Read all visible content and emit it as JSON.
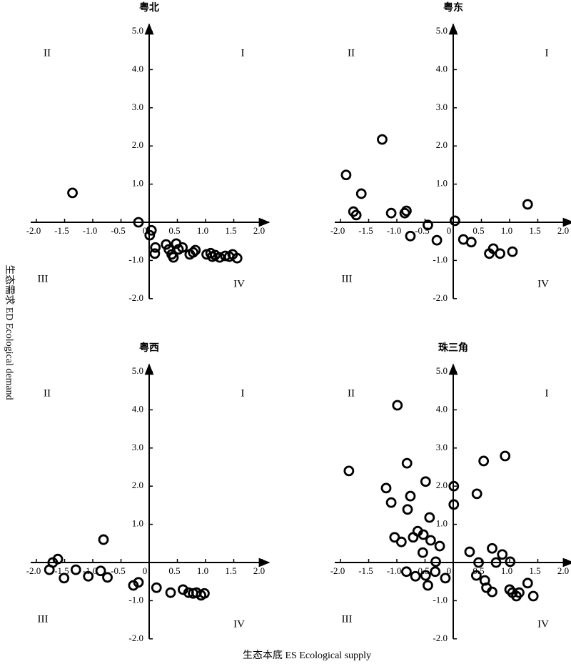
{
  "y_label": "生态需求 ED  Ecological demand",
  "x_label": "生态本底 ES  Ecological supply",
  "chart_data": [
    {
      "type": "scatter",
      "title": "粤北",
      "color": "#000000",
      "quadrant_labels": [
        "I",
        "II",
        "III",
        "IV"
      ],
      "xlim": [
        -2,
        2
      ],
      "ylim": [
        -2,
        5
      ],
      "xticks": [
        {
          "value": -2,
          "label": "-2.0"
        },
        {
          "value": -1.5,
          "label": "-1.5"
        },
        {
          "value": -1,
          "label": "-1.0"
        },
        {
          "value": -0.5,
          "label": "-0.5"
        },
        0,
        {
          "value": 0.5,
          "label": "0.5"
        },
        {
          "value": 1,
          "label": "1.0"
        },
        {
          "value": 1.5,
          "label": "1.5"
        },
        {
          "value": 2,
          "label": "2.0"
        }
      ],
      "yticks": [
        {
          "value": -2,
          "label": "-2.0"
        },
        {
          "value": -1,
          "label": "-1.0"
        },
        {
          "value": 1,
          "label": "1.0"
        },
        {
          "value": 2,
          "label": "2.0"
        },
        {
          "value": 3,
          "label": "3.0"
        },
        {
          "value": 4,
          "label": "4.0"
        },
        {
          "value": 5,
          "label": "5.0"
        }
      ],
      "x": [
        -1.36,
        -0.19,
        0.01,
        0.04,
        0.11,
        0.1,
        0.3,
        0.35,
        0.4,
        0.43,
        0.48,
        0.52,
        0.59,
        0.72,
        0.78,
        0.82,
        1.02,
        1.09,
        1.12,
        1.17,
        1.25,
        1.35,
        1.42,
        1.48,
        1.56
      ],
      "y": [
        0.77,
        0.0,
        -0.34,
        -0.21,
        -0.66,
        -0.82,
        -0.58,
        -0.71,
        -0.84,
        -0.92,
        -0.56,
        -0.71,
        -0.66,
        -0.84,
        -0.79,
        -0.73,
        -0.84,
        -0.81,
        -0.9,
        -0.86,
        -0.92,
        -0.88,
        -0.9,
        -0.84,
        -0.94
      ]
    },
    {
      "type": "scatter",
      "title": "粤东",
      "color": "#000000",
      "quadrant_labels": [
        "I",
        "II",
        "III",
        "IV"
      ],
      "xlim": [
        -2,
        2
      ],
      "ylim": [
        -2,
        5
      ],
      "xticks": [
        {
          "value": -2,
          "label": "-2.0"
        },
        {
          "value": -1.5,
          "label": "-1.5"
        },
        {
          "value": -1,
          "label": "-1.0"
        },
        {
          "value": -0.5,
          "label": "-0.5"
        },
        0,
        {
          "value": 0.5,
          "label": "0.5"
        },
        {
          "value": 1,
          "label": "1.0"
        },
        {
          "value": 1.5,
          "label": "1.5"
        },
        {
          "value": 2,
          "label": "2.0"
        }
      ],
      "yticks": [
        {
          "value": -2,
          "label": "-2.0"
        },
        {
          "value": -1,
          "label": "-1.0"
        },
        {
          "value": 1,
          "label": "1.0"
        },
        {
          "value": 2,
          "label": "2.0"
        },
        {
          "value": 3,
          "label": "3.0"
        },
        {
          "value": 4,
          "label": "4.0"
        },
        {
          "value": 5,
          "label": "5.0"
        }
      ],
      "x": [
        -1.9,
        -1.26,
        -1.63,
        -1.77,
        -1.72,
        -1.1,
        -0.86,
        -0.83,
        -0.76,
        -0.45,
        -0.29,
        0.03,
        0.18,
        0.32,
        0.64,
        0.71,
        0.83,
        1.05,
        1.32
      ],
      "y": [
        1.24,
        2.17,
        0.75,
        0.28,
        0.19,
        0.24,
        0.24,
        0.3,
        -0.36,
        -0.07,
        -0.47,
        0.04,
        -0.45,
        -0.52,
        -0.82,
        -0.69,
        -0.82,
        -0.77,
        0.47
      ]
    },
    {
      "type": "scatter",
      "title": "粤西",
      "color": "#000000",
      "quadrant_labels": [
        "I",
        "II",
        "III",
        "IV"
      ],
      "xlim": [
        -2,
        2
      ],
      "ylim": [
        -2,
        5
      ],
      "xticks": [
        {
          "value": -2,
          "label": "-2.0"
        },
        {
          "value": -1.5,
          "label": "-1.5"
        },
        {
          "value": -1,
          "label": "-1.0"
        },
        {
          "value": -0.5,
          "label": "-0.5"
        },
        0,
        {
          "value": 0.5,
          "label": "0.5"
        },
        {
          "value": 1,
          "label": "1.0"
        },
        {
          "value": 1.5,
          "label": "1.5"
        },
        {
          "value": 2,
          "label": "2.0"
        }
      ],
      "yticks": [
        {
          "value": -2,
          "label": "-2.0"
        },
        {
          "value": -1,
          "label": "-1.0"
        },
        {
          "value": 1,
          "label": "1.0"
        },
        {
          "value": 2,
          "label": "2.0"
        },
        {
          "value": 3,
          "label": "3.0"
        },
        {
          "value": 4,
          "label": "4.0"
        },
        {
          "value": 5,
          "label": "5.0"
        }
      ],
      "x": [
        -1.77,
        -1.71,
        -1.62,
        -1.51,
        -1.3,
        -1.08,
        -0.86,
        -0.81,
        -0.74,
        -0.28,
        -0.19,
        0.13,
        0.38,
        0.6,
        0.7,
        0.78,
        0.84,
        0.92,
        0.98
      ],
      "y": [
        -0.19,
        0.0,
        0.09,
        -0.41,
        -0.19,
        -0.36,
        -0.22,
        0.6,
        -0.39,
        -0.6,
        -0.52,
        -0.66,
        -0.79,
        -0.71,
        -0.79,
        -0.81,
        -0.79,
        -0.86,
        -0.81
      ]
    },
    {
      "type": "scatter",
      "title": "珠三角",
      "color": "#000000",
      "quadrant_labels": [
        "I",
        "II",
        "III",
        "IV"
      ],
      "xlim": [
        -2,
        2
      ],
      "ylim": [
        -2,
        5
      ],
      "xticks": [
        {
          "value": -2,
          "label": "-2.0"
        },
        {
          "value": -1.5,
          "label": "-1.5"
        },
        {
          "value": -1,
          "label": "-1.0"
        },
        {
          "value": -0.5,
          "label": "-0.5"
        },
        0,
        {
          "value": 0.5,
          "label": "0.5"
        },
        {
          "value": 1,
          "label": "1.0"
        },
        {
          "value": 1.5,
          "label": "1.5"
        },
        {
          "value": 2,
          "label": "2.0"
        }
      ],
      "yticks": [
        {
          "value": -2,
          "label": "-2.0"
        },
        {
          "value": -1,
          "label": "-1.0"
        },
        {
          "value": 1,
          "label": "1.0"
        },
        {
          "value": 2,
          "label": "2.0"
        },
        {
          "value": 3,
          "label": "3.0"
        },
        {
          "value": 4,
          "label": "4.0"
        },
        {
          "value": 5,
          "label": "5.0"
        }
      ],
      "x": [
        -1.85,
        -0.99,
        -0.82,
        -1.19,
        -0.76,
        -1.1,
        -0.81,
        -0.49,
        -0.42,
        -1.04,
        -0.92,
        -0.71,
        -0.63,
        -0.53,
        -0.4,
        -0.24,
        -0.54,
        -0.31,
        -0.83,
        -0.67,
        -0.49,
        -0.45,
        -0.32,
        -0.14,
        0.01,
        0.01,
        0.42,
        0.54,
        0.92,
        0.29,
        0.69,
        0.45,
        0.41,
        0.56,
        0.59,
        0.69,
        0.76,
        0.87,
        1.01,
        1.0,
        1.05,
        1.12,
        1.17,
        1.32,
        1.42
      ],
      "y": [
        2.4,
        4.12,
        2.6,
        1.95,
        1.74,
        1.57,
        1.39,
        2.12,
        1.18,
        0.66,
        0.54,
        0.66,
        0.82,
        0.73,
        0.58,
        0.43,
        0.26,
        0.02,
        -0.24,
        -0.36,
        -0.34,
        -0.6,
        -0.24,
        -0.41,
        2.0,
        1.52,
        1.8,
        2.66,
        2.79,
        0.28,
        0.37,
        0.0,
        -0.34,
        -0.47,
        -0.66,
        -0.77,
        0.0,
        0.21,
        0.02,
        -0.71,
        -0.79,
        -0.88,
        -0.79,
        -0.54,
        -0.88
      ]
    }
  ]
}
